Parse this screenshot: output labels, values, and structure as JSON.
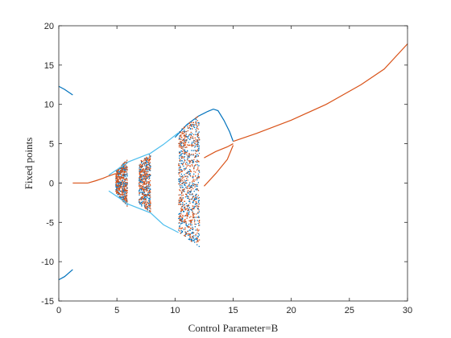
{
  "chart_data": {
    "type": "scatter",
    "title": "",
    "xlabel": "Control Parameter=B",
    "ylabel": "Fixed points",
    "xlim": [
      0,
      30
    ],
    "ylim": [
      -15,
      20
    ],
    "x_ticks": [
      0,
      5,
      10,
      15,
      20,
      25,
      30
    ],
    "y_ticks": [
      -15,
      -10,
      -5,
      0,
      5,
      10,
      15,
      20
    ],
    "grid": false,
    "legend": "none",
    "colors": {
      "series_a": "#0072BD",
      "series_b": "#D95319",
      "series_c": "#4DBEEE"
    },
    "series": [
      {
        "color": "#0072BD",
        "curves": [
          [
            [
              0.0,
              12.3
            ],
            [
              0.5,
              11.9
            ],
            [
              1.2,
              11.2
            ]
          ],
          [
            [
              0.0,
              -12.3
            ],
            [
              0.5,
              -11.9
            ],
            [
              1.2,
              -11.0
            ]
          ],
          [
            [
              10.0,
              5.8
            ],
            [
              11.0,
              7.4
            ],
            [
              12.0,
              8.5
            ],
            [
              12.8,
              9.1
            ],
            [
              13.3,
              9.4
            ],
            [
              13.7,
              9.2
            ],
            [
              14.2,
              8.0
            ],
            [
              14.7,
              6.5
            ],
            [
              15.0,
              5.3
            ]
          ]
        ],
        "bands": [
          {
            "x": [
              4.9,
              5.9
            ],
            "top": [
              1.5,
              3.0
            ],
            "bottom": [
              -1.2,
              -3.0
            ]
          },
          {
            "x": [
              6.9,
              7.9
            ],
            "top": [
              2.7,
              3.7
            ],
            "bottom": [
              -2.7,
              -3.7
            ]
          },
          {
            "x": [
              10.3,
              12.1
            ],
            "top": [
              6.6,
              8.7
            ],
            "bottom": [
              -6.2,
              -8.2
            ]
          }
        ]
      },
      {
        "color": "#D95319",
        "curves": [
          [
            [
              1.2,
              0.0
            ],
            [
              2.5,
              0.0
            ]
          ],
          [
            [
              2.5,
              0.0
            ],
            [
              3.2,
              0.3
            ],
            [
              3.8,
              0.6
            ],
            [
              4.3,
              0.9
            ],
            [
              4.9,
              1.2
            ]
          ],
          [
            [
              15.0,
              5.3
            ],
            [
              17.0,
              6.3
            ],
            [
              20.0,
              8.0
            ],
            [
              23.0,
              10.0
            ],
            [
              26.0,
              12.5
            ],
            [
              28.0,
              14.5
            ],
            [
              30.0,
              17.7
            ]
          ],
          [
            [
              12.5,
              3.2
            ],
            [
              13.5,
              4.0
            ],
            [
              14.5,
              4.6
            ],
            [
              15.0,
              5.0
            ]
          ],
          [
            [
              12.5,
              -0.4
            ],
            [
              13.5,
              1.2
            ],
            [
              14.5,
              3.0
            ],
            [
              15.0,
              4.8
            ]
          ]
        ],
        "bands": [
          {
            "x": [
              4.9,
              5.9
            ],
            "top": [
              1.5,
              3.0
            ],
            "bottom": [
              -1.2,
              -3.0
            ]
          },
          {
            "x": [
              6.9,
              7.9
            ],
            "top": [
              2.7,
              3.7
            ],
            "bottom": [
              -2.7,
              -3.7
            ]
          },
          {
            "x": [
              10.3,
              12.1
            ],
            "top": [
              6.6,
              8.7
            ],
            "bottom": [
              -6.2,
              -8.2
            ]
          }
        ]
      },
      {
        "color": "#4DBEEE",
        "curves": [
          [
            [
              4.3,
              1.0
            ],
            [
              6.0,
              2.7
            ],
            [
              7.9,
              3.8
            ],
            [
              9.0,
              4.9
            ],
            [
              10.3,
              6.4
            ]
          ],
          [
            [
              4.3,
              -1.0
            ],
            [
              6.0,
              -2.7
            ],
            [
              7.9,
              -3.8
            ],
            [
              9.0,
              -5.3
            ],
            [
              10.3,
              -6.3
            ]
          ]
        ],
        "bands": []
      }
    ]
  }
}
